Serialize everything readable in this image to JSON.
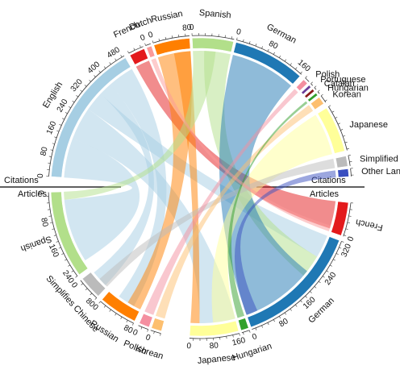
{
  "top_label": "Citations",
  "bottom_label": "Articles",
  "citations": [
    {
      "label": "English",
      "ticks": [
        "0",
        "80",
        "160",
        "240",
        "320",
        "400",
        "480"
      ]
    },
    {
      "label": "French",
      "ticks": []
    },
    {
      "label": "Dutch",
      "ticks": [
        "0"
      ]
    },
    {
      "label": "Russian",
      "ticks": [
        "0",
        "80"
      ]
    },
    {
      "label": "Spanish",
      "ticks": [
        "0"
      ]
    },
    {
      "label": "German",
      "ticks": [
        "0",
        "80",
        "160"
      ]
    },
    {
      "label": "Polish",
      "ticks": []
    },
    {
      "label": "Portuguese",
      "ticks": []
    },
    {
      "label": "Catalan",
      "ticks": []
    },
    {
      "label": "Hungarian",
      "ticks": []
    },
    {
      "label": "Korean",
      "ticks": []
    },
    {
      "label": "Japanese",
      "ticks": []
    },
    {
      "label": "Simplified Chinese",
      "ticks": []
    },
    {
      "label": "Other Languages",
      "ticks": []
    }
  ],
  "articles": [
    {
      "label": "French",
      "ticks": [
        "0"
      ]
    },
    {
      "label": "German",
      "ticks": [
        "0",
        "80",
        "160",
        "240",
        "320"
      ]
    },
    {
      "label": "Hungarian",
      "ticks": []
    },
    {
      "label": "Japanese",
      "ticks": [
        "0",
        "80",
        "160"
      ]
    },
    {
      "label": "Korean",
      "ticks": [
        "0"
      ]
    },
    {
      "label": "Polish",
      "ticks": [
        "0"
      ]
    },
    {
      "label": "Russian",
      "ticks": [
        "0",
        "80"
      ]
    },
    {
      "label": "Simplifies Chinese",
      "ticks": [
        "0",
        "80"
      ]
    },
    {
      "label": "Spanish",
      "ticks": [
        "0",
        "80",
        "160",
        "240"
      ]
    }
  ]
}
